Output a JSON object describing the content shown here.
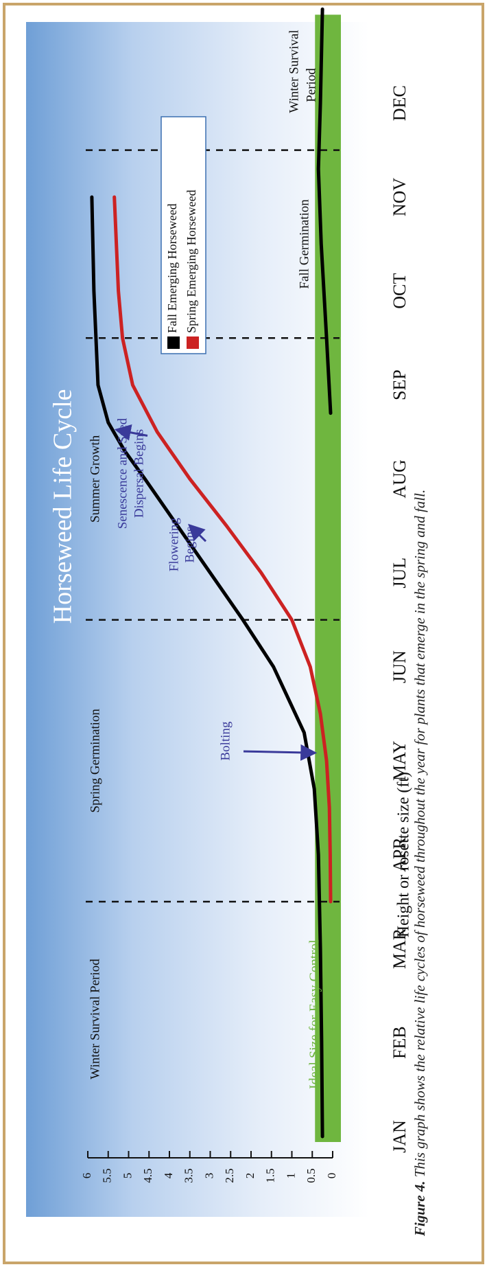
{
  "caption": {
    "lead": "Figure 4.",
    "text": " This graph shows the relative life cycles of horseweed throughout the year for plants that emerge in the spring and fall."
  },
  "colors": {
    "fall": "#000000",
    "spring": "#cc2222",
    "ideal": "#6fb63f",
    "annotation": "#3a3a9a",
    "frame": "#c9a56a"
  },
  "chart_data": {
    "type": "line",
    "title": "Horseweed Life Cycle",
    "xlabel": "",
    "ylabel": "Height or rosette size (ft)",
    "ylim": [
      0,
      6
    ],
    "y_ticks": [
      "0",
      "0.5",
      "1",
      "1.5",
      "2",
      "2.5",
      "3",
      "3.5",
      "4",
      "4.5",
      "5",
      "5.5",
      "6"
    ],
    "categories": [
      "JAN",
      "FEB",
      "MAR",
      "APR",
      "MAY",
      "JUN",
      "JUL",
      "AUG",
      "SEP",
      "OCT",
      "NOV",
      "DEC"
    ],
    "series": [
      {
        "name": "Fall Emerging Horseweed",
        "color": "#000000",
        "segments": [
          [
            [
              0,
              0.25
            ],
            [
              1,
              0.27
            ],
            [
              2,
              0.3
            ],
            [
              3,
              0.35
            ],
            [
              3.7,
              0.45
            ],
            [
              4.3,
              0.7
            ],
            [
              5,
              1.45
            ],
            [
              5.5,
              2.2
            ],
            [
              6,
              3.0
            ],
            [
              6.5,
              3.8
            ],
            [
              7,
              4.6
            ],
            [
              7.3,
              5.1
            ],
            [
              7.6,
              5.5
            ],
            [
              8,
              5.75
            ],
            [
              9,
              5.85
            ],
            [
              10,
              5.9
            ]
          ],
          [
            [
              7.7,
              0.05
            ],
            [
              8.5,
              0.15
            ],
            [
              9.5,
              0.28
            ],
            [
              10.3,
              0.35
            ],
            [
              11,
              0.3
            ],
            [
              12,
              0.25
            ]
          ]
        ]
      },
      {
        "name": "Spring Emerging Horseweed",
        "color": "#cc2222",
        "segments": [
          [
            [
              2.5,
              0.05
            ],
            [
              3,
              0.06
            ],
            [
              3.5,
              0.08
            ],
            [
              4,
              0.15
            ],
            [
              4.5,
              0.3
            ],
            [
              5,
              0.55
            ],
            [
              5.5,
              1.0
            ],
            [
              6,
              1.75
            ],
            [
              6.5,
              2.6
            ],
            [
              7,
              3.5
            ],
            [
              7.5,
              4.3
            ],
            [
              8,
              4.9
            ],
            [
              8.5,
              5.15
            ],
            [
              9,
              5.25
            ],
            [
              10,
              5.35
            ]
          ]
        ]
      }
    ],
    "period_dividers": [
      2.5,
      5.5,
      8.5,
      10.5
    ],
    "periods": [
      {
        "label": "Winter Survival Period",
        "from": 0,
        "to": 2.5
      },
      {
        "label": "Spring Germination",
        "from": 2.5,
        "to": 5.5
      },
      {
        "label": "Summer Growth",
        "from": 5.5,
        "to": 8.5
      },
      {
        "label": "Fall Germination",
        "from": 8.5,
        "to": 10.5
      },
      {
        "label": "Winter Survival",
        "label2": "Period",
        "from": 10.5,
        "to": 12
      }
    ],
    "ideal_band": {
      "label": "Ideal Size for Easy Control",
      "max": 0.5
    },
    "annotations": [
      {
        "label": "Bolting",
        "x": 4.1,
        "y": 0.45
      },
      {
        "label": "Flowering",
        "label2": "Begins",
        "x": 6.3,
        "y": 3.3
      },
      {
        "label": "Senescence and Seed",
        "label2": "Dispersal Begins",
        "x": 7.35,
        "y": 5.05
      }
    ],
    "legend": {
      "position": "top-right"
    }
  }
}
